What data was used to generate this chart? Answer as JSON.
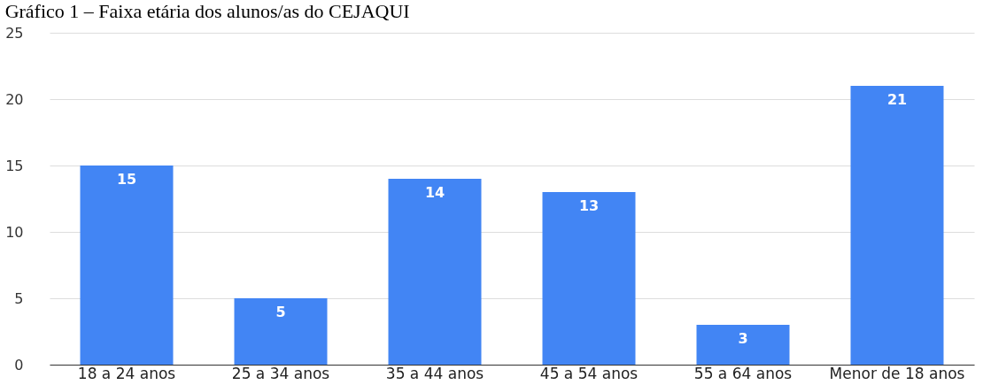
{
  "chart_data": {
    "type": "bar",
    "title": "Gráfico 1 – Faixa etária dos alunos/as do CEJAQUI",
    "categories": [
      "18 a 24 anos",
      "25 a 34 anos",
      "35 a 44 anos",
      "45 a 54 anos",
      "55 a 64 anos",
      "Menor de 18 anos"
    ],
    "values": [
      15,
      5,
      14,
      13,
      3,
      21
    ],
    "color": "#4285f4",
    "ylim": [
      0,
      25
    ],
    "yticks": [
      0,
      5,
      10,
      15,
      20,
      25
    ],
    "grid": "y",
    "data_labels": true
  }
}
